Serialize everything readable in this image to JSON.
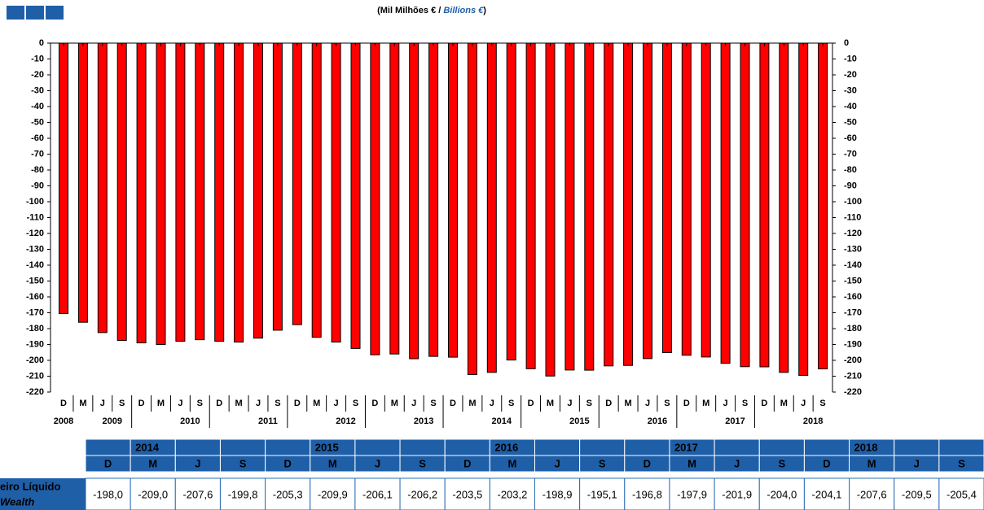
{
  "chart_data": {
    "type": "bar",
    "title": [
      "(Mil Milhões € / ",
      "Billions €",
      ")"
    ],
    "categories": [
      "D",
      "M",
      "J",
      "S",
      "D",
      "M",
      "J",
      "S",
      "D",
      "M",
      "J",
      "S",
      "D",
      "M",
      "J",
      "S",
      "D",
      "M",
      "J",
      "S",
      "D",
      "M",
      "J",
      "S",
      "D",
      "M",
      "J",
      "S",
      "D",
      "M",
      "J",
      "S",
      "D",
      "M",
      "J",
      "S",
      "D",
      "M",
      "J",
      "S"
    ],
    "year_labels": [
      "2008",
      null,
      "2009",
      null,
      null,
      null,
      "2010",
      null,
      null,
      null,
      "2011",
      null,
      null,
      null,
      "2012",
      null,
      null,
      null,
      "2013",
      null,
      null,
      null,
      "2014",
      null,
      null,
      null,
      "2015",
      null,
      null,
      null,
      "2016",
      null,
      null,
      null,
      "2017",
      null,
      null,
      null,
      "2018",
      null
    ],
    "values": [
      -170.5,
      -176,
      -182.5,
      -187.5,
      -189,
      -190,
      -188,
      -187,
      -188,
      -188.5,
      -186,
      -181,
      -177.5,
      -185.5,
      -188.5,
      -192.5,
      -196.5,
      -196,
      -199,
      -197.5,
      -198.0,
      -209.0,
      -207.6,
      -199.8,
      -205.3,
      -209.9,
      -206.1,
      -206.2,
      -203.5,
      -203.2,
      -198.9,
      -195.1,
      -196.8,
      -197.9,
      -201.9,
      -204.0,
      -204.1,
      -207.6,
      -209.5,
      -205.4
    ],
    "color": "#ff0000",
    "ylim": [
      -220,
      0
    ],
    "yticks": [
      0,
      -10,
      -20,
      -30,
      -40,
      -50,
      -60,
      -70,
      -80,
      -90,
      -100,
      -110,
      -120,
      -130,
      -140,
      -150,
      -160,
      -170,
      -180,
      -190,
      -200,
      -210,
      -220
    ],
    "y2lim": [
      -220,
      0
    ],
    "y2ticks": [
      0,
      -10,
      -20,
      -30,
      -40,
      -50,
      -60,
      -70,
      -80,
      -90,
      -100,
      -110,
      -120,
      -130,
      -140,
      -150,
      -160,
      -170,
      -180,
      -190,
      -200,
      -210,
      -220
    ]
  },
  "table": {
    "years": [
      null,
      "2014",
      null,
      null,
      null,
      "2015",
      null,
      null,
      null,
      "2016",
      null,
      null,
      null,
      "2017",
      null,
      null,
      null,
      "2018",
      null,
      null
    ],
    "quarters": [
      "D",
      "M",
      "J",
      "S",
      "D",
      "M",
      "J",
      "S",
      "D",
      "M",
      "J",
      "S",
      "D",
      "M",
      "J",
      "S",
      "D",
      "M",
      "J",
      "S"
    ],
    "row_label": [
      "eiro Líquido",
      "Wealth"
    ],
    "values": [
      "-198,0",
      "-209,0",
      "-207,6",
      "-199,8",
      "-205,3",
      "-209,9",
      "-206,1",
      "-206,2",
      "-203,5",
      "-203,2",
      "-198,9",
      "-195,1",
      "-196,8",
      "-197,9",
      "-201,9",
      "-204,0",
      "-204,1",
      "-207,6",
      "-209,5",
      "-205,4"
    ]
  }
}
